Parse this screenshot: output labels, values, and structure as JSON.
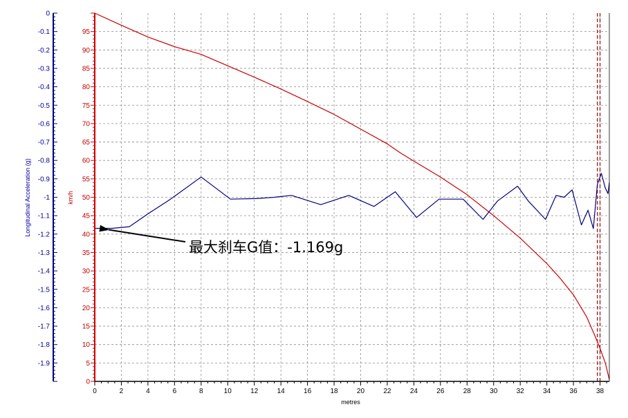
{
  "chart_data": {
    "type": "line",
    "title": "",
    "xlabel": "metres",
    "ylabel_left": "Longitudinal Acceleration (g)",
    "ylabel_right": "km/h",
    "xlim": [
      0,
      38.7
    ],
    "ylim_left": [
      -2.0,
      0
    ],
    "ylim_right": [
      0,
      100
    ],
    "x_ticks": [
      0,
      2,
      4,
      6,
      8,
      10,
      12,
      14,
      16,
      18,
      20,
      22,
      24,
      26,
      28,
      30,
      32,
      34,
      36,
      38
    ],
    "y_left_ticks": [
      0,
      -0.1,
      -0.2,
      -0.3,
      -0.4,
      -0.5,
      -0.6,
      -0.7,
      -0.8,
      -0.9,
      -1,
      -1.1,
      -1.2,
      -1.3,
      -1.4,
      -1.5,
      -1.6,
      -1.7,
      -1.8,
      -1.9
    ],
    "y_right_ticks": [
      5,
      10,
      15,
      20,
      25,
      30,
      35,
      40,
      45,
      50,
      55,
      60,
      65,
      70,
      75,
      80,
      85,
      90,
      95
    ],
    "grid": true,
    "series": [
      {
        "axis": "right",
        "color": "#cc0000",
        "x": [
          0,
          2,
          4,
          6,
          8,
          10,
          12,
          14,
          16,
          18,
          20,
          22,
          23,
          24,
          26,
          28,
          30,
          32,
          34,
          35,
          36,
          37,
          37.6,
          38,
          38.4,
          38.7
        ],
        "y": [
          100,
          96.7,
          93.5,
          90.9,
          88.8,
          85.7,
          82.6,
          79.4,
          76.0,
          72.5,
          68.5,
          64.5,
          62.0,
          59.8,
          55.5,
          50.7,
          45.0,
          38.9,
          32.0,
          28.0,
          23.5,
          17.5,
          12.5,
          9.0,
          5.0,
          0.5
        ]
      },
      {
        "axis": "left",
        "color": "#000080",
        "x": [
          0,
          0.5,
          1.3,
          2.6,
          4,
          5.7,
          8,
          10.2,
          12.2,
          13.5,
          14.8,
          17,
          19.1,
          21,
          22.6,
          24.2,
          25.9,
          27.7,
          29.2,
          30.3,
          31.8,
          32.6,
          33.9,
          34.7,
          35.3,
          35.9,
          36.6,
          37.1,
          37.5,
          37.8,
          38.1,
          38.4,
          38.6,
          38.7
        ],
        "y": [
          -1.169,
          -1.169,
          -1.169,
          -1.16,
          -1.09,
          -1.01,
          -0.89,
          -1.01,
          -1.007,
          -1.0,
          -0.99,
          -1.04,
          -0.99,
          -1.05,
          -0.97,
          -1.11,
          -1.01,
          -1.01,
          -1.12,
          -1.02,
          -0.94,
          -1.02,
          -1.12,
          -0.99,
          -1.0,
          -0.96,
          -1.15,
          -1.07,
          -1.17,
          -0.93,
          -0.87,
          -0.95,
          -0.98,
          -0.92
        ]
      }
    ],
    "reference_lines": [
      {
        "x": 37.8,
        "style": "dashed",
        "color": "#990000"
      },
      {
        "x": 38.0,
        "style": "dashed",
        "color": "#990000"
      }
    ],
    "annotation": {
      "text": "最大刹车G值：-1.169g",
      "arrow_to": {
        "x": 0,
        "y_left": -1.169
      }
    }
  }
}
